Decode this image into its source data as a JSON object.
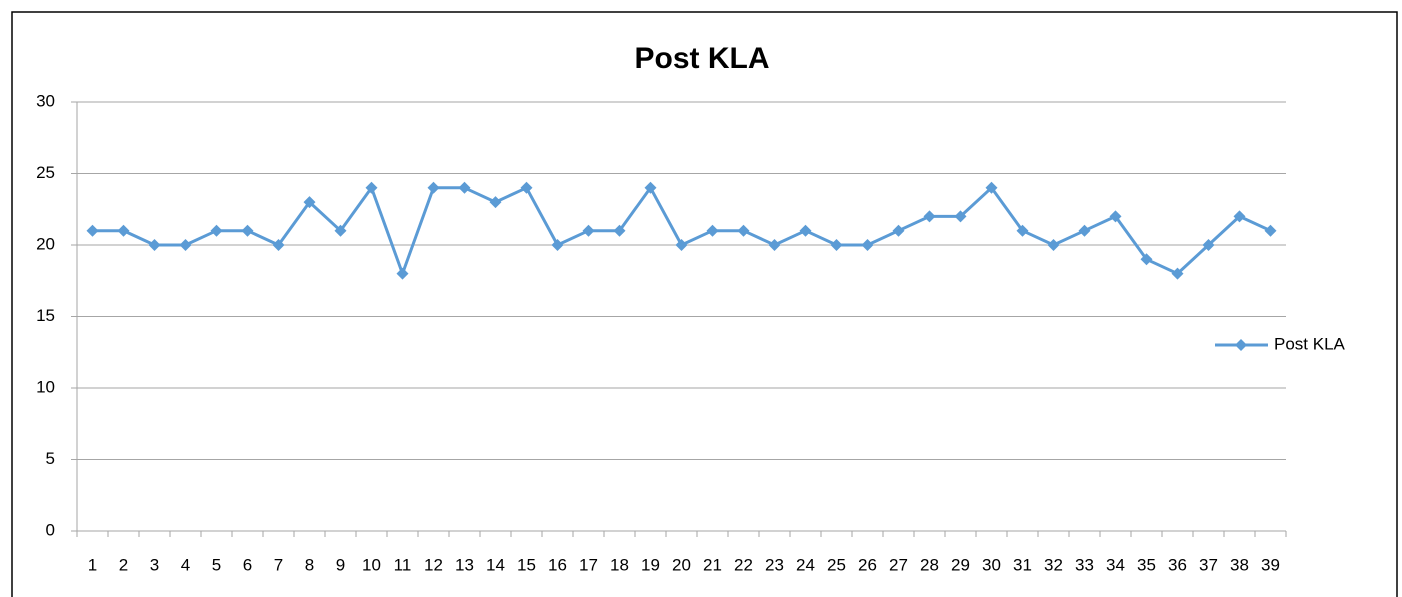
{
  "chart_data": {
    "type": "line",
    "title": "Post KLA",
    "categories": [
      "1",
      "2",
      "3",
      "4",
      "5",
      "6",
      "7",
      "8",
      "9",
      "10",
      "11",
      "12",
      "13",
      "14",
      "15",
      "16",
      "17",
      "18",
      "19",
      "20",
      "21",
      "22",
      "23",
      "24",
      "25",
      "26",
      "27",
      "28",
      "29",
      "30",
      "31",
      "32",
      "33",
      "34",
      "35",
      "36",
      "37",
      "38",
      "39"
    ],
    "series": [
      {
        "name": "Post KLA",
        "color": "#5b9bd5",
        "values": [
          21,
          21,
          20,
          20,
          21,
          21,
          20,
          23,
          21,
          24,
          18,
          24,
          24,
          23,
          24,
          20,
          21,
          21,
          24,
          20,
          21,
          21,
          20,
          21,
          20,
          20,
          21,
          22,
          22,
          24,
          21,
          20,
          21,
          22,
          19,
          18,
          20,
          22,
          21
        ]
      }
    ],
    "ylim": [
      0,
      30
    ],
    "yticks": [
      0,
      5,
      10,
      15,
      20,
      25,
      30
    ],
    "grid": true,
    "legend": "right"
  }
}
